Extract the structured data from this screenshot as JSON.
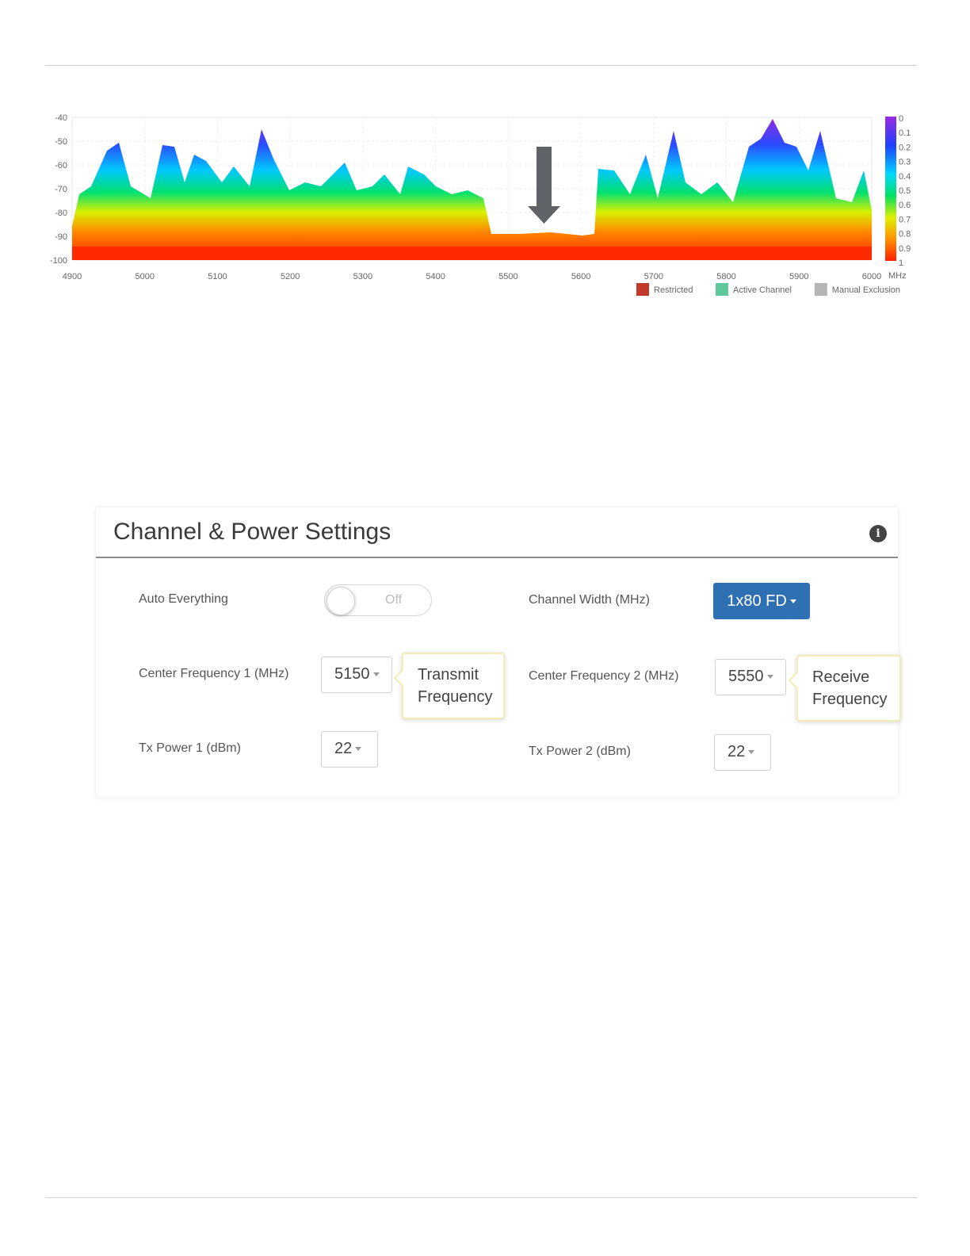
{
  "spectrum": {
    "y_ticks": [
      "-40",
      "-50",
      "-60",
      "-70",
      "-80",
      "-90",
      "-100"
    ],
    "x_ticks": [
      "4900",
      "5000",
      "5100",
      "5200",
      "5300",
      "5400",
      "5500",
      "5600",
      "5700",
      "5800",
      "5900",
      "6000"
    ],
    "x_unit": "MHz",
    "scale_ticks": [
      "0",
      "0.1",
      "0.2",
      "0.3",
      "0.4",
      "0.5",
      "0.6",
      "0.7",
      "0.8",
      "0.9",
      "1"
    ],
    "legend": [
      {
        "label": "Restricted",
        "color": "#c0392b"
      },
      {
        "label": "Active Channel",
        "color": "#5fc79a"
      },
      {
        "label": "Manual Exclusion",
        "color": "#b5b5b5"
      }
    ],
    "arrow_color": "#5f6368"
  },
  "panel": {
    "title": "Channel & Power Settings",
    "info_icon": "i",
    "auto_everything": {
      "label": "Auto Everything",
      "state": "Off"
    },
    "channel_width": {
      "label": "Channel Width (MHz)",
      "value": "1x80 FD",
      "color": "#2f70b3"
    },
    "center_freq_1": {
      "label": "Center Frequency 1 (MHz)",
      "value": "5150"
    },
    "center_freq_2": {
      "label": "Center Frequency 2 (MHz)",
      "value": "5550"
    },
    "tx_power_1": {
      "label": "Tx Power 1 (dBm)",
      "value": "22"
    },
    "tx_power_2": {
      "label": "Tx Power 2 (dBm)",
      "value": "22"
    },
    "callout_tx": [
      "Transmit",
      "Frequency"
    ],
    "callout_rx": [
      "Receive",
      "Frequency"
    ]
  }
}
